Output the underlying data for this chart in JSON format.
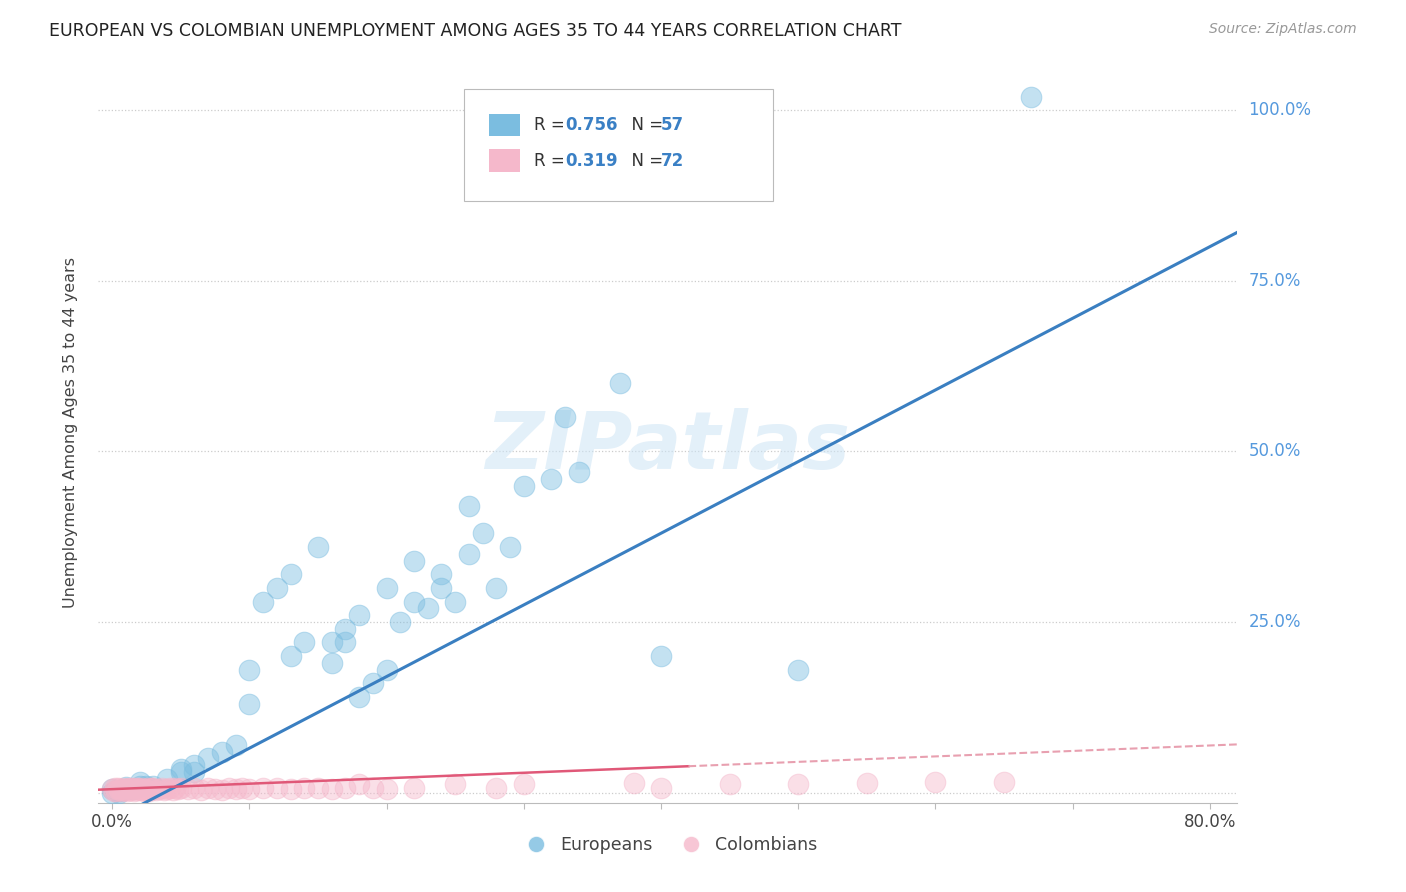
{
  "title": "EUROPEAN VS COLOMBIAN UNEMPLOYMENT AMONG AGES 35 TO 44 YEARS CORRELATION CHART",
  "source": "Source: ZipAtlas.com",
  "ylabel": "Unemployment Among Ages 35 to 44 years",
  "xlim": [
    -0.01,
    0.82
  ],
  "ylim": [
    -0.015,
    1.07
  ],
  "blue_color": "#7bbde0",
  "pink_color": "#f5b8cb",
  "blue_line_color": "#3a7fc1",
  "pink_line_solid_color": "#e05878",
  "pink_line_dash_color": "#e8a0b0",
  "title_fontsize": 12.5,
  "source_fontsize": 10,
  "watermark_text": "ZIPatlas",
  "background_color": "#ffffff",
  "legend_blue_r_val": "0.756",
  "legend_blue_n_val": "57",
  "legend_pink_r_val": "0.319",
  "legend_pink_n_val": "72",
  "blue_line_slope": 1.05,
  "blue_line_intercept": -0.04,
  "pink_line_slope": 0.08,
  "pink_line_intercept": 0.005,
  "x_blue": [
    0.0,
    0.01,
    0.02,
    0.0,
    0.005,
    0.015,
    0.025,
    0.03,
    0.01,
    0.005,
    0.02,
    0.04,
    0.03,
    0.05,
    0.06,
    0.07,
    0.08,
    0.06,
    0.05,
    0.09,
    0.1,
    0.11,
    0.12,
    0.1,
    0.13,
    0.14,
    0.15,
    0.13,
    0.16,
    0.17,
    0.18,
    0.19,
    0.17,
    0.2,
    0.18,
    0.16,
    0.21,
    0.22,
    0.2,
    0.23,
    0.24,
    0.22,
    0.25,
    0.26,
    0.24,
    0.27,
    0.28,
    0.26,
    0.29,
    0.3,
    0.32,
    0.34,
    0.33,
    0.37,
    0.4,
    0.5,
    0.67
  ],
  "y_blue": [
    0.0,
    0.005,
    0.01,
    0.005,
    0.0,
    0.005,
    0.01,
    0.005,
    0.008,
    0.002,
    0.015,
    0.02,
    0.01,
    0.03,
    0.04,
    0.05,
    0.06,
    0.03,
    0.035,
    0.07,
    0.13,
    0.28,
    0.3,
    0.18,
    0.32,
    0.22,
    0.36,
    0.2,
    0.22,
    0.24,
    0.26,
    0.16,
    0.22,
    0.18,
    0.14,
    0.19,
    0.25,
    0.28,
    0.3,
    0.27,
    0.32,
    0.34,
    0.28,
    0.35,
    0.3,
    0.38,
    0.3,
    0.42,
    0.36,
    0.45,
    0.46,
    0.47,
    0.55,
    0.6,
    0.2,
    0.18,
    1.02
  ],
  "x_pink": [
    0.0,
    0.001,
    0.002,
    0.003,
    0.004,
    0.005,
    0.006,
    0.007,
    0.008,
    0.009,
    0.01,
    0.011,
    0.012,
    0.013,
    0.014,
    0.015,
    0.016,
    0.017,
    0.018,
    0.019,
    0.02,
    0.021,
    0.022,
    0.023,
    0.024,
    0.025,
    0.026,
    0.027,
    0.028,
    0.029,
    0.03,
    0.032,
    0.034,
    0.036,
    0.038,
    0.04,
    0.042,
    0.044,
    0.046,
    0.048,
    0.05,
    0.055,
    0.06,
    0.065,
    0.07,
    0.075,
    0.08,
    0.085,
    0.09,
    0.095,
    0.1,
    0.11,
    0.12,
    0.13,
    0.14,
    0.15,
    0.16,
    0.17,
    0.18,
    0.19,
    0.2,
    0.22,
    0.25,
    0.28,
    0.3,
    0.38,
    0.4,
    0.45,
    0.5,
    0.55,
    0.6,
    0.65
  ],
  "y_pink": [
    0.005,
    0.002,
    0.006,
    0.003,
    0.007,
    0.004,
    0.005,
    0.003,
    0.006,
    0.004,
    0.005,
    0.003,
    0.007,
    0.004,
    0.006,
    0.005,
    0.003,
    0.006,
    0.004,
    0.007,
    0.005,
    0.004,
    0.006,
    0.003,
    0.005,
    0.004,
    0.007,
    0.003,
    0.006,
    0.005,
    0.006,
    0.004,
    0.005,
    0.007,
    0.004,
    0.005,
    0.006,
    0.004,
    0.007,
    0.005,
    0.006,
    0.005,
    0.007,
    0.004,
    0.006,
    0.005,
    0.004,
    0.007,
    0.005,
    0.006,
    0.005,
    0.006,
    0.007,
    0.005,
    0.006,
    0.007,
    0.005,
    0.006,
    0.013,
    0.007,
    0.005,
    0.006,
    0.013,
    0.007,
    0.013,
    0.014,
    0.006,
    0.012,
    0.013,
    0.014,
    0.015,
    0.016
  ]
}
